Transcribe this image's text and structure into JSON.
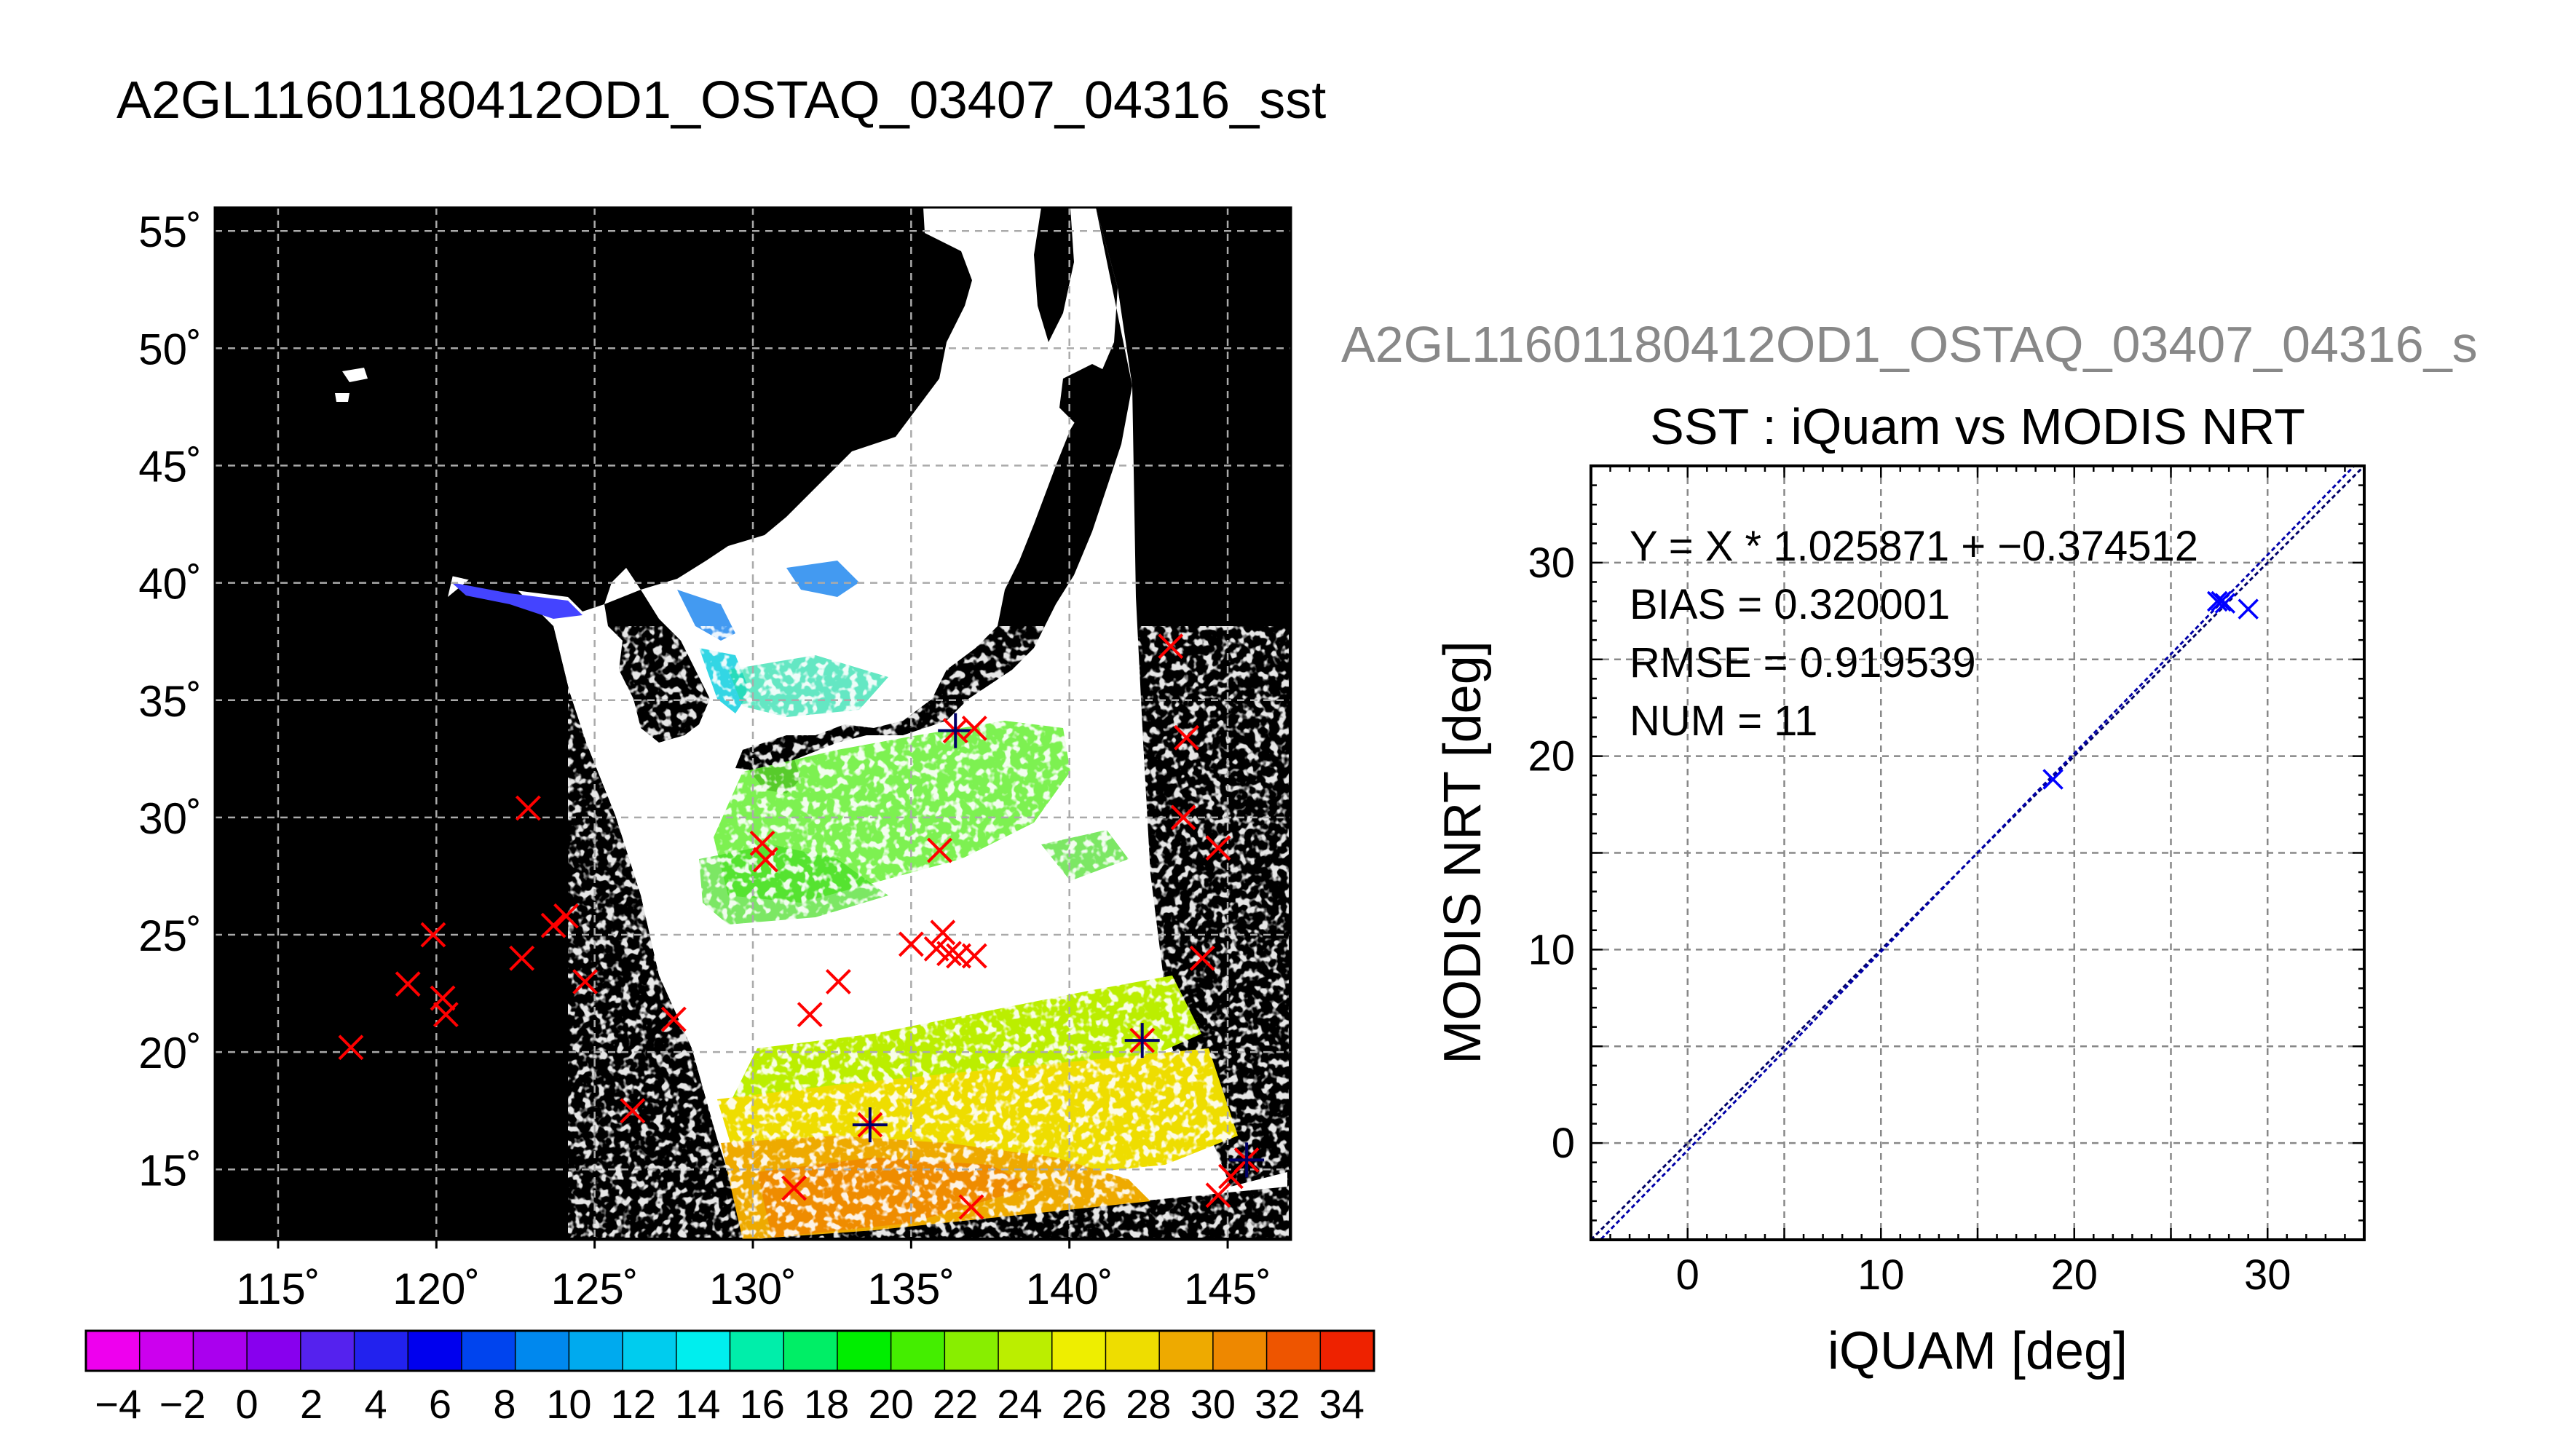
{
  "page": {
    "title": "A2GL11601180412OD1_OSTAQ_03407_04316_sst",
    "overlay_title": "A2GL11601180412OD1_OSTAQ_03407_04316_s"
  },
  "colors": {
    "land": "#000000",
    "cloud": "#ffffff",
    "match_marker": "#ff0000",
    "scatter_marker": "#0000ff",
    "regression_line": "#0000aa",
    "grid": "#888888",
    "overlay_title": "#888888"
  },
  "chart_data": [
    {
      "type": "map",
      "title": "",
      "lon_ticks": [
        "115˚",
        "120˚",
        "125˚",
        "130˚",
        "135˚",
        "140˚",
        "145˚"
      ],
      "lat_ticks": [
        "55˚",
        "50˚",
        "45˚",
        "40˚",
        "35˚",
        "30˚",
        "25˚",
        "20˚",
        "15˚"
      ],
      "lon_range": [
        113,
        147
      ],
      "lat_range": [
        12,
        56
      ],
      "grid": true,
      "markers": [
        {
          "lon": 117.3,
          "lat": 20.2
        },
        {
          "lon": 119.1,
          "lat": 22.9
        },
        {
          "lon": 119.9,
          "lat": 25.0
        },
        {
          "lon": 120.2,
          "lat": 22.3
        },
        {
          "lon": 120.3,
          "lat": 21.6
        },
        {
          "lon": 122.7,
          "lat": 24.0
        },
        {
          "lon": 122.9,
          "lat": 30.4
        },
        {
          "lon": 123.7,
          "lat": 25.4
        },
        {
          "lon": 124.1,
          "lat": 25.8
        },
        {
          "lon": 124.7,
          "lat": 23.0
        },
        {
          "lon": 126.2,
          "lat": 17.5
        },
        {
          "lon": 127.5,
          "lat": 21.4
        },
        {
          "lon": 130.3,
          "lat": 28.9
        },
        {
          "lon": 130.4,
          "lat": 28.2
        },
        {
          "lon": 131.3,
          "lat": 14.2
        },
        {
          "lon": 131.8,
          "lat": 21.6
        },
        {
          "lon": 132.7,
          "lat": 23.0
        },
        {
          "lon": 133.7,
          "lat": 16.9,
          "matched": true
        },
        {
          "lon": 135.0,
          "lat": 24.6
        },
        {
          "lon": 135.8,
          "lat": 24.4
        },
        {
          "lon": 135.9,
          "lat": 28.6
        },
        {
          "lon": 136.0,
          "lat": 25.1
        },
        {
          "lon": 136.2,
          "lat": 24.2
        },
        {
          "lon": 136.5,
          "lat": 24.1
        },
        {
          "lon": 136.4,
          "lat": 33.7,
          "matched": true
        },
        {
          "lon": 136.9,
          "lat": 13.4
        },
        {
          "lon": 137.0,
          "lat": 33.8
        },
        {
          "lon": 137.0,
          "lat": 24.1
        },
        {
          "lon": 142.3,
          "lat": 20.5,
          "matched": true
        },
        {
          "lon": 143.2,
          "lat": 37.3
        },
        {
          "lon": 143.6,
          "lat": 30.0
        },
        {
          "lon": 143.7,
          "lat": 33.4
        },
        {
          "lon": 144.2,
          "lat": 24.0
        },
        {
          "lon": 144.7,
          "lat": 28.7
        },
        {
          "lon": 144.7,
          "lat": 13.9
        },
        {
          "lon": 145.1,
          "lat": 14.7
        },
        {
          "lon": 145.6,
          "lat": 15.4,
          "matched": true
        }
      ]
    },
    {
      "type": "colorbar",
      "tick_labels": [
        "-4",
        "-2",
        "0",
        "2",
        "4",
        "6",
        "8",
        "10",
        "12",
        "14",
        "16",
        "18",
        "20",
        "22",
        "24",
        "26",
        "28",
        "30",
        "32",
        "34"
      ],
      "range": [
        -5,
        35
      ],
      "colors": [
        "#ee00ee",
        "#cc00ee",
        "#aa00ee",
        "#8800ee",
        "#5522ee",
        "#2222ee",
        "#0000ee",
        "#0044ee",
        "#0088ee",
        "#00aaee",
        "#00ccee",
        "#00eeee",
        "#00eeaa",
        "#00ee66",
        "#00ee00",
        "#44ee00",
        "#88ee00",
        "#bbee00",
        "#eeee00",
        "#eedd00",
        "#eeaa00",
        "#ee8800",
        "#ee5500",
        "#ee2200"
      ]
    },
    {
      "type": "scatter",
      "title": "SST : iQuam vs MODIS NRT",
      "xlabel": "iQUAM [deg]",
      "ylabel": "MODIS NRT [deg]",
      "xlim": [
        -5,
        35
      ],
      "ylim": [
        -5,
        35
      ],
      "xticks": [
        0,
        10,
        20,
        30
      ],
      "yticks": [
        0,
        10,
        20,
        30
      ],
      "grid": true,
      "stats": [
        "Y = X * 1.025871 + −0.374512",
        "BIAS = 0.320001",
        "RMSE = 0.919539",
        "NUM = 11"
      ],
      "fit": {
        "slope": 1.025871,
        "intercept": -0.374512
      },
      "points": [
        {
          "x": 18.9,
          "y": 18.8
        },
        {
          "x": 27.4,
          "y": 28.0
        },
        {
          "x": 27.6,
          "y": 28.0
        },
        {
          "x": 27.8,
          "y": 27.9
        },
        {
          "x": 29.0,
          "y": 27.6
        }
      ]
    }
  ]
}
